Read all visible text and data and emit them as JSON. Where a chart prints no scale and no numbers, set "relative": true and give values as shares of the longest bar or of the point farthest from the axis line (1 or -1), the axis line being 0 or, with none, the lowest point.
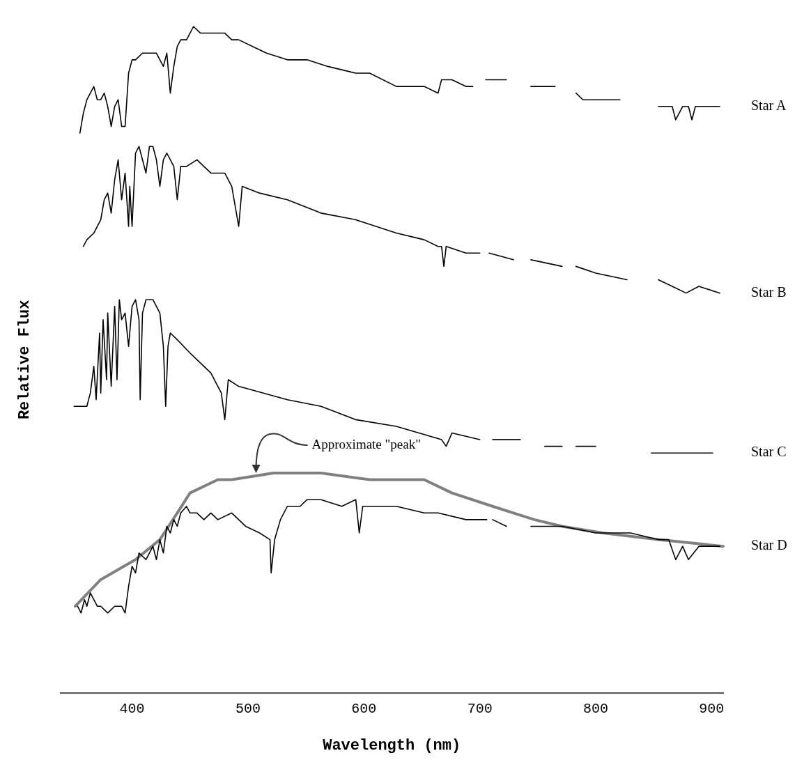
{
  "chart_data": {
    "type": "line",
    "relative": true,
    "xlabel": "Wavelength (nm)",
    "ylabel": "Relative Flux",
    "xlim": [
      338,
      910
    ],
    "xticks": [
      400,
      500,
      600,
      700,
      800,
      900
    ],
    "grid": false,
    "legend": false,
    "marker": "none",
    "line_style": "solid",
    "annotations": [
      {
        "text": "Approximate \"peak\"",
        "x": 507,
        "y": 0.33
      }
    ],
    "series": [
      {
        "name": "Star A",
        "color": "#000000",
        "x": [
          355,
          358,
          361,
          367,
          370,
          373,
          376,
          379,
          382,
          385,
          388,
          391,
          394,
          397,
          400,
          403,
          409,
          415,
          421,
          424,
          427,
          430,
          433,
          436,
          439,
          442,
          447,
          453,
          459,
          468,
          480,
          486,
          492,
          504,
          516,
          534,
          551,
          569,
          593,
          605,
          628,
          652,
          664,
          667,
          676,
          688,
          694,
          698,
          705,
          723,
          735,
          744,
          765,
          773,
          783,
          789,
          800,
          821,
          835,
          854,
          866,
          869,
          875,
          880,
          883,
          886,
          907
        ],
        "values": [
          0.84,
          0.87,
          0.89,
          0.91,
          0.89,
          0.89,
          0.9,
          0.88,
          0.85,
          0.88,
          0.89,
          0.85,
          0.85,
          0.93,
          0.95,
          0.95,
          0.96,
          0.96,
          0.96,
          0.95,
          0.94,
          0.96,
          0.9,
          0.94,
          0.97,
          0.98,
          0.98,
          1.0,
          0.99,
          0.99,
          0.99,
          0.98,
          0.98,
          0.97,
          0.96,
          0.95,
          0.95,
          0.94,
          0.93,
          0.93,
          0.91,
          0.91,
          0.9,
          0.92,
          0.92,
          0.91,
          0.91,
          null,
          0.92,
          0.92,
          null,
          0.91,
          0.91,
          null,
          0.9,
          0.89,
          0.89,
          0.89,
          null,
          0.88,
          0.88,
          0.86,
          0.88,
          0.88,
          0.86,
          0.88,
          0.88
        ]
      },
      {
        "name": "Star B",
        "color": "#000000",
        "x": [
          358,
          361,
          367,
          373,
          376,
          379,
          382,
          385,
          388,
          391,
          394,
          397,
          398,
          400,
          403,
          406,
          412,
          415,
          418,
          421,
          424,
          427,
          430,
          436,
          439,
          442,
          447,
          456,
          468,
          474,
          480,
          486,
          492,
          495,
          510,
          534,
          563,
          593,
          628,
          652,
          664,
          667,
          669,
          671,
          688,
          700,
          704,
          708,
          729,
          737,
          744,
          771,
          776,
          783,
          800,
          827,
          840,
          854,
          866,
          878,
          889,
          907
        ],
        "values": [
          0.67,
          0.68,
          0.69,
          0.71,
          0.74,
          0.75,
          0.72,
          0.77,
          0.8,
          0.74,
          0.78,
          0.7,
          0.76,
          0.7,
          0.81,
          0.82,
          0.78,
          0.82,
          0.82,
          0.8,
          0.76,
          0.8,
          0.81,
          0.79,
          0.74,
          0.79,
          0.79,
          0.8,
          0.78,
          0.78,
          0.78,
          0.76,
          0.7,
          0.76,
          0.75,
          0.74,
          0.72,
          0.71,
          0.69,
          0.68,
          0.67,
          0.67,
          0.64,
          0.67,
          0.66,
          0.66,
          null,
          0.66,
          0.65,
          null,
          0.65,
          0.64,
          null,
          0.64,
          0.63,
          0.62,
          null,
          0.62,
          0.61,
          0.6,
          0.61,
          0.6
        ]
      },
      {
        "name": "Star C",
        "color": "#000000",
        "x": [
          350,
          361,
          364,
          367,
          369,
          372,
          373,
          375,
          378,
          379,
          382,
          385,
          387,
          389,
          391,
          394,
          397,
          400,
          403,
          406,
          407,
          409,
          412,
          418,
          424,
          427,
          429,
          431,
          433,
          439,
          450,
          468,
          477,
          480,
          483,
          492,
          534,
          563,
          593,
          628,
          667,
          671,
          676,
          700,
          705,
          711,
          735,
          745,
          756,
          771,
          776,
          783,
          800,
          825,
          848,
          866,
          901
        ],
        "values": [
          0.43,
          0.43,
          0.45,
          0.49,
          0.44,
          0.54,
          0.45,
          0.56,
          0.47,
          0.57,
          0.46,
          0.58,
          0.47,
          0.59,
          0.56,
          0.57,
          0.52,
          0.58,
          0.59,
          0.56,
          0.44,
          0.57,
          0.59,
          0.59,
          0.57,
          0.52,
          0.43,
          0.52,
          0.54,
          0.53,
          0.51,
          0.48,
          0.45,
          0.41,
          0.47,
          0.46,
          0.44,
          0.43,
          0.41,
          0.4,
          0.38,
          0.37,
          0.39,
          0.38,
          null,
          0.38,
          0.38,
          null,
          0.37,
          0.37,
          null,
          0.37,
          0.37,
          null,
          0.36,
          0.36,
          0.36
        ]
      },
      {
        "name": "Star D",
        "color": "#000000",
        "x": [
          353,
          356,
          359,
          361,
          364,
          367,
          370,
          373,
          379,
          385,
          391,
          394,
          397,
          400,
          403,
          406,
          412,
          418,
          421,
          424,
          427,
          430,
          433,
          436,
          439,
          442,
          447,
          450,
          456,
          462,
          468,
          474,
          486,
          498,
          510,
          519,
          520,
          523,
          528,
          534,
          545,
          551,
          563,
          581,
          593,
          596,
          599,
          617,
          628,
          652,
          664,
          688,
          706,
          709,
          711,
          723,
          735,
          744,
          771,
          800,
          830,
          854,
          863,
          869,
          875,
          880,
          889,
          907
        ],
        "values": [
          0.13,
          0.12,
          0.14,
          0.13,
          0.15,
          0.14,
          0.13,
          0.13,
          0.12,
          0.13,
          0.13,
          0.12,
          0.16,
          0.19,
          0.18,
          0.21,
          0.2,
          0.22,
          0.2,
          0.23,
          0.21,
          0.25,
          0.24,
          0.26,
          0.25,
          0.27,
          0.28,
          0.27,
          0.27,
          0.26,
          0.27,
          0.26,
          0.27,
          0.25,
          0.24,
          0.23,
          0.18,
          0.23,
          0.26,
          0.28,
          0.28,
          0.29,
          0.29,
          0.28,
          0.29,
          0.24,
          0.28,
          0.28,
          0.28,
          0.27,
          0.27,
          0.26,
          0.26,
          null,
          0.26,
          0.25,
          null,
          0.25,
          0.25,
          0.24,
          0.24,
          0.23,
          0.23,
          0.2,
          0.22,
          0.2,
          0.22,
          0.22
        ]
      },
      {
        "color": "#808080",
        "x": [
          351,
          373,
          403,
          424,
          439,
          450,
          474,
          486,
          522,
          563,
          605,
          652,
          676,
          711,
          747,
          771,
          806,
          854,
          910
        ],
        "values": [
          0.13,
          0.17,
          0.2,
          0.23,
          0.27,
          0.3,
          0.32,
          0.32,
          0.33,
          0.33,
          0.32,
          0.32,
          0.3,
          0.28,
          0.26,
          0.25,
          0.24,
          0.23,
          0.22
        ]
      }
    ]
  }
}
